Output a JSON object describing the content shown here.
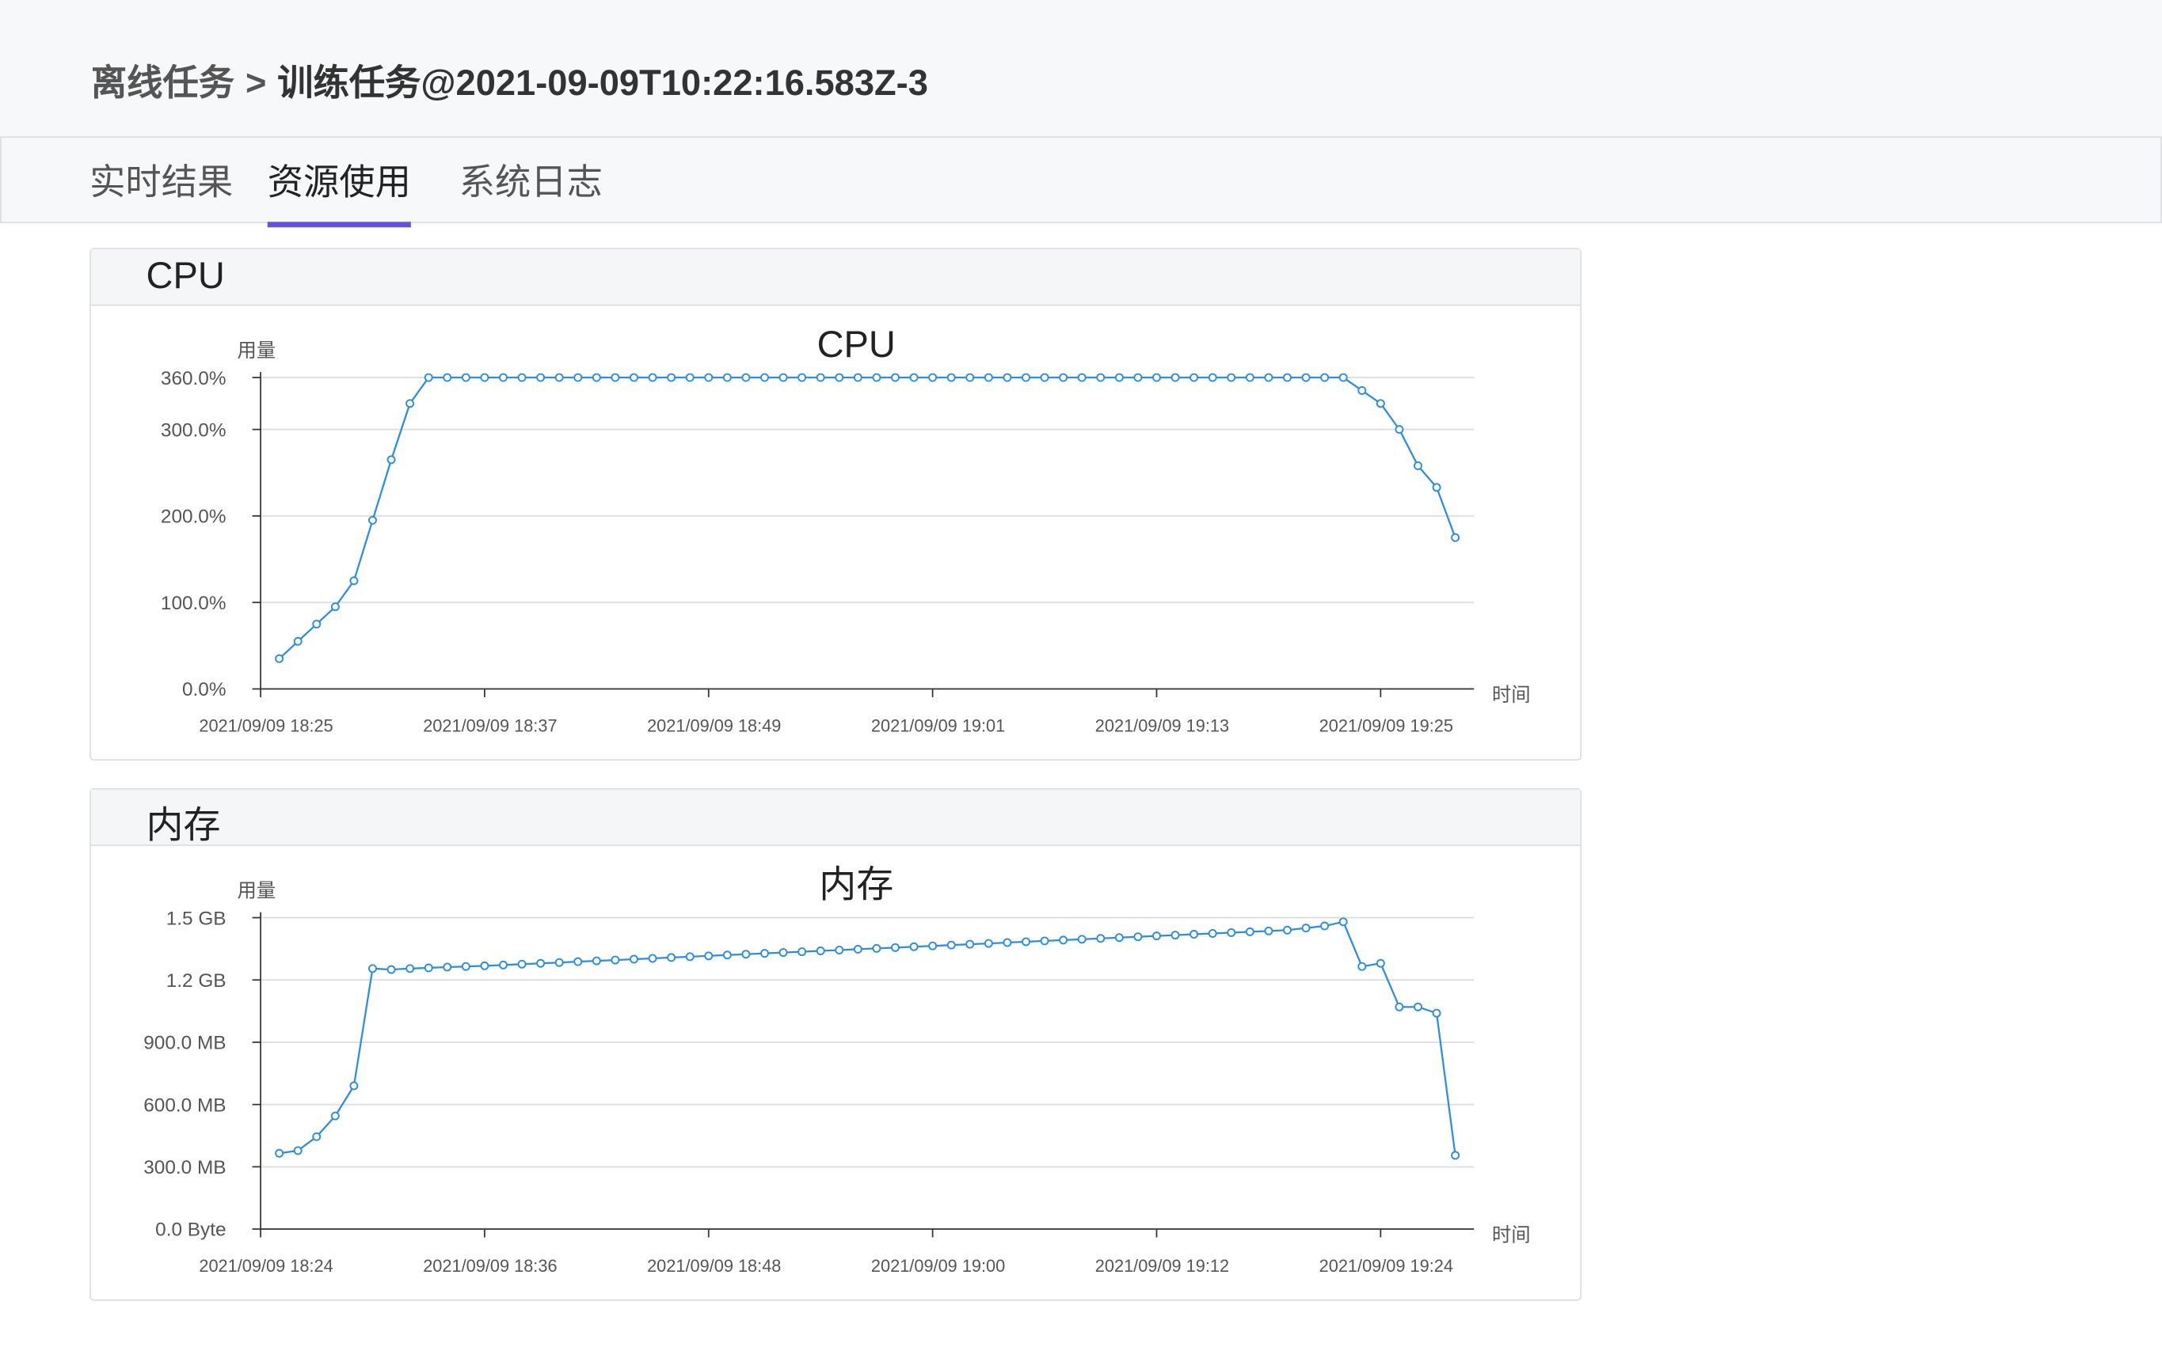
{
  "header": {
    "breadcrumb_parent": "离线任务",
    "separator": ">",
    "title": "训练任务@2021-09-09T10:22:16.583Z-3"
  },
  "tabs": [
    "实时结果",
    "资源使用",
    "系统日志"
  ],
  "active_tab": 1,
  "panels": [
    {
      "title": "CPU"
    },
    {
      "title": "内存"
    }
  ],
  "chart_data": [
    {
      "type": "line",
      "title": "CPU",
      "y_label": "用量",
      "x_label": "时间",
      "color": "#2b8de3",
      "grid": true,
      "x": [
        "2021/09/09 18:26",
        "2021/09/09 18:27",
        "2021/09/09 18:28",
        "2021/09/09 18:29",
        "2021/09/09 18:30",
        "2021/09/09 18:31",
        "2021/09/09 18:32",
        "2021/09/09 18:33",
        "2021/09/09 18:34",
        "2021/09/09 18:35",
        "2021/09/09 18:36",
        "2021/09/09 18:37",
        "2021/09/09 18:38",
        "2021/09/09 18:39",
        "2021/09/09 18:40",
        "2021/09/09 18:41",
        "2021/09/09 18:42",
        "2021/09/09 18:43",
        "2021/09/09 18:44",
        "2021/09/09 18:45",
        "2021/09/09 18:46",
        "2021/09/09 18:47",
        "2021/09/09 18:48",
        "2021/09/09 18:49",
        "2021/09/09 18:50",
        "2021/09/09 18:51",
        "2021/09/09 18:52",
        "2021/09/09 18:53",
        "2021/09/09 18:54",
        "2021/09/09 18:55",
        "2021/09/09 18:56",
        "2021/09/09 18:57",
        "2021/09/09 18:58",
        "2021/09/09 18:59",
        "2021/09/09 19:00",
        "2021/09/09 19:01",
        "2021/09/09 19:02",
        "2021/09/09 19:03",
        "2021/09/09 19:04",
        "2021/09/09 19:05",
        "2021/09/09 19:06",
        "2021/09/09 19:07",
        "2021/09/09 19:08",
        "2021/09/09 19:09",
        "2021/09/09 19:10",
        "2021/09/09 19:11",
        "2021/09/09 19:12",
        "2021/09/09 19:13",
        "2021/09/09 19:14",
        "2021/09/09 19:15",
        "2021/09/09 19:16",
        "2021/09/09 19:17",
        "2021/09/09 19:18",
        "2021/09/09 19:19",
        "2021/09/09 19:20",
        "2021/09/09 19:21",
        "2021/09/09 19:22",
        "2021/09/09 19:23",
        "2021/09/09 19:24",
        "2021/09/09 19:25",
        "2021/09/09 19:26",
        "2021/09/09 19:27",
        "2021/09/09 19:28",
        "2021/09/09 19:29"
      ],
      "values": [
        35,
        55,
        75,
        95,
        125,
        195,
        265,
        330,
        360,
        360,
        360,
        360,
        360,
        360,
        360,
        360,
        360,
        360,
        360,
        360,
        360,
        360,
        360,
        360,
        360,
        360,
        360,
        360,
        360,
        360,
        360,
        360,
        360,
        360,
        360,
        360,
        360,
        360,
        360,
        360,
        360,
        360,
        360,
        360,
        360,
        360,
        360,
        360,
        360,
        360,
        360,
        360,
        360,
        360,
        360,
        360,
        360,
        360,
        345,
        330,
        300,
        258,
        233,
        175
      ],
      "xlim": [
        "2021/09/09 18:25",
        "2021/09/09 19:30"
      ],
      "xticks": [
        "2021/09/09 18:25",
        "2021/09/09 18:37",
        "2021/09/09 18:49",
        "2021/09/09 19:01",
        "2021/09/09 19:13",
        "2021/09/09 19:25"
      ],
      "ylim": [
        0,
        360
      ],
      "yticks": [
        {
          "value": 0,
          "label": "0.0%"
        },
        {
          "value": 100,
          "label": "100.0%"
        },
        {
          "value": 200,
          "label": "200.0%"
        },
        {
          "value": 300,
          "label": "300.0%"
        },
        {
          "value": 360,
          "label": "360.0%"
        }
      ]
    },
    {
      "type": "line",
      "title": "内存",
      "y_label": "用量",
      "x_label": "时间",
      "color": "#2b8de3",
      "grid": true,
      "x": [
        "2021/09/09 18:25",
        "2021/09/09 18:26",
        "2021/09/09 18:27",
        "2021/09/09 18:28",
        "2021/09/09 18:29",
        "2021/09/09 18:30",
        "2021/09/09 18:31",
        "2021/09/09 18:32",
        "2021/09/09 18:33",
        "2021/09/09 18:34",
        "2021/09/09 18:35",
        "2021/09/09 18:36",
        "2021/09/09 18:37",
        "2021/09/09 18:38",
        "2021/09/09 18:39",
        "2021/09/09 18:40",
        "2021/09/09 18:41",
        "2021/09/09 18:42",
        "2021/09/09 18:43",
        "2021/09/09 18:44",
        "2021/09/09 18:45",
        "2021/09/09 18:46",
        "2021/09/09 18:47",
        "2021/09/09 18:48",
        "2021/09/09 18:49",
        "2021/09/09 18:50",
        "2021/09/09 18:51",
        "2021/09/09 18:52",
        "2021/09/09 18:53",
        "2021/09/09 18:54",
        "2021/09/09 18:55",
        "2021/09/09 18:56",
        "2021/09/09 18:57",
        "2021/09/09 18:58",
        "2021/09/09 18:59",
        "2021/09/09 19:00",
        "2021/09/09 19:01",
        "2021/09/09 19:02",
        "2021/09/09 19:03",
        "2021/09/09 19:04",
        "2021/09/09 19:05",
        "2021/09/09 19:06",
        "2021/09/09 19:07",
        "2021/09/09 19:08",
        "2021/09/09 19:09",
        "2021/09/09 19:10",
        "2021/09/09 19:11",
        "2021/09/09 19:12",
        "2021/09/09 19:13",
        "2021/09/09 19:14",
        "2021/09/09 19:15",
        "2021/09/09 19:16",
        "2021/09/09 19:17",
        "2021/09/09 19:18",
        "2021/09/09 19:19",
        "2021/09/09 19:20",
        "2021/09/09 19:21",
        "2021/09/09 19:22",
        "2021/09/09 19:23",
        "2021/09/09 19:24",
        "2021/09/09 19:25",
        "2021/09/09 19:26",
        "2021/09/09 19:27",
        "2021/09/09 19:28"
      ],
      "values": [
        365,
        378,
        445,
        545,
        690,
        1255,
        1250,
        1255,
        1258,
        1262,
        1265,
        1268,
        1272,
        1276,
        1280,
        1284,
        1288,
        1292,
        1296,
        1300,
        1304,
        1308,
        1312,
        1316,
        1320,
        1324,
        1328,
        1332,
        1336,
        1340,
        1344,
        1348,
        1352,
        1356,
        1360,
        1364,
        1368,
        1372,
        1376,
        1380,
        1384,
        1388,
        1392,
        1396,
        1400,
        1404,
        1408,
        1412,
        1416,
        1420,
        1424,
        1428,
        1432,
        1436,
        1440,
        1450,
        1460,
        1480,
        1265,
        1280,
        1070,
        1070,
        1040,
        355
      ],
      "xlim": [
        "2021/09/09 18:24",
        "2021/09/09 19:29"
      ],
      "xticks": [
        "2021/09/09 18:24",
        "2021/09/09 18:36",
        "2021/09/09 18:48",
        "2021/09/09 19:00",
        "2021/09/09 19:12",
        "2021/09/09 19:24"
      ],
      "ylim": [
        0,
        1500
      ],
      "yticks": [
        {
          "value": 0,
          "label": "0.0 Byte"
        },
        {
          "value": 300,
          "label": "300.0 MB"
        },
        {
          "value": 600,
          "label": "600.0 MB"
        },
        {
          "value": 900,
          "label": "900.0 MB"
        },
        {
          "value": 1200,
          "label": "1.2 GB"
        },
        {
          "value": 1500,
          "label": "1.5 GB"
        }
      ]
    }
  ]
}
